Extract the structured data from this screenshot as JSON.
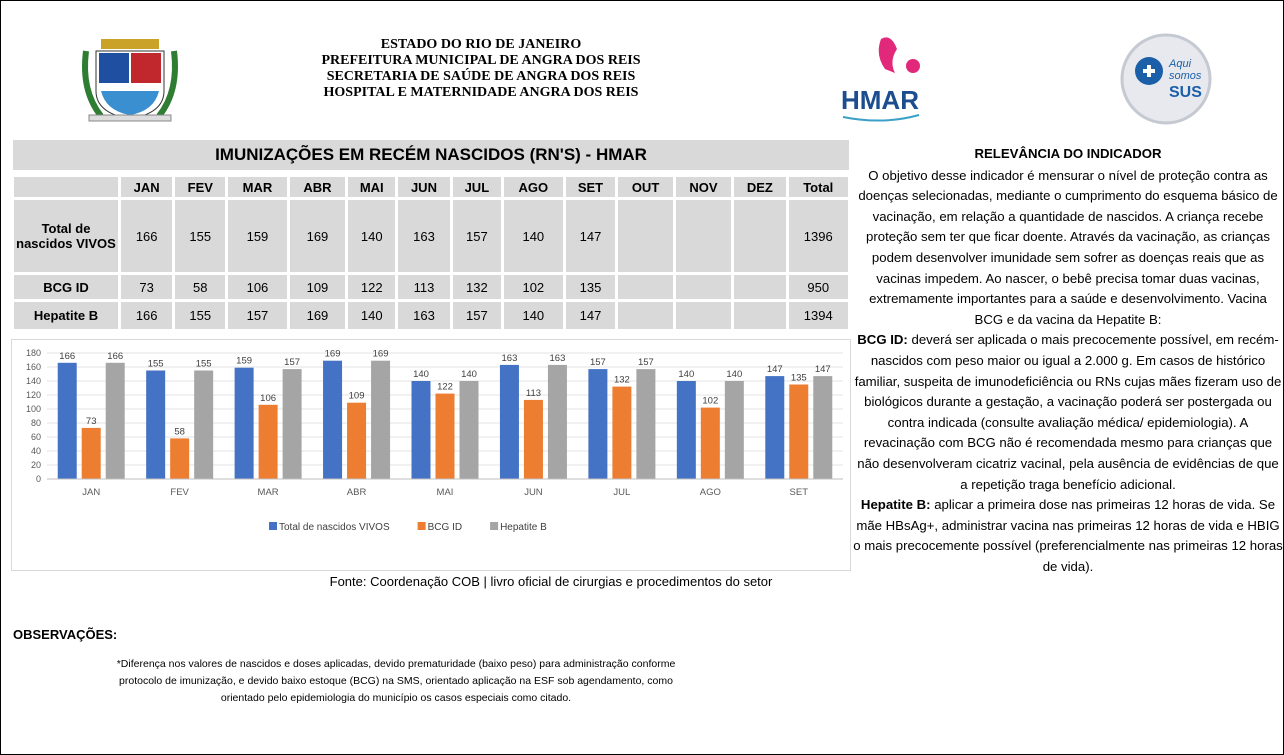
{
  "header": {
    "lines": [
      "ESTADO DO RIO DE JANEIRO",
      "PREFEITURA MUNICIPAL DE ANGRA DOS REIS",
      "SECRETARIA DE SAÚDE DE ANGRA DOS REIS",
      "HOSPITAL E MATERNIDADE ANGRA DOS REIS"
    ],
    "hmar_logo": "HMAR",
    "sus_logo": {
      "line1": "Aqui",
      "line2": "somos",
      "line3": "SUS"
    }
  },
  "title": "IMUNIZAÇÕES EM RECÉM NASCIDOS (RN'S) - HMAR",
  "table": {
    "columns": [
      "JAN",
      "FEV",
      "MAR",
      "ABR",
      "MAI",
      "JUN",
      "JUL",
      "AGO",
      "SET",
      "OUT",
      "NOV",
      "DEZ",
      "Total"
    ],
    "rows": [
      {
        "label": "Total de nascidos VIVOS",
        "values": [
          166,
          155,
          159,
          169,
          140,
          163,
          157,
          140,
          147
        ],
        "total": 1396
      },
      {
        "label": "BCG ID",
        "values": [
          73,
          58,
          106,
          109,
          122,
          113,
          132,
          102,
          135
        ],
        "total": 950
      },
      {
        "label": "Hepatite B",
        "values": [
          166,
          155,
          157,
          169,
          140,
          163,
          157,
          140,
          147
        ],
        "total": 1394
      }
    ]
  },
  "chart_data": {
    "type": "bar",
    "categories": [
      "JAN",
      "FEV",
      "MAR",
      "ABR",
      "MAI",
      "JUN",
      "JUL",
      "AGO",
      "SET"
    ],
    "series": [
      {
        "name": "Total de nascidos VIVOS",
        "color": "#4472c4",
        "values": [
          166,
          155,
          159,
          169,
          140,
          163,
          157,
          140,
          147
        ]
      },
      {
        "name": "BCG ID",
        "color": "#ed7d31",
        "values": [
          73,
          58,
          106,
          109,
          122,
          113,
          132,
          102,
          135
        ]
      },
      {
        "name": "Hepatite B",
        "color": "#a5a5a5",
        "values": [
          166,
          155,
          157,
          169,
          140,
          163,
          157,
          140,
          147
        ]
      }
    ],
    "ylim": [
      0,
      180
    ],
    "yticks": [
      0,
      20,
      40,
      60,
      80,
      100,
      120,
      140,
      160,
      180
    ],
    "grid": true,
    "legend": "bottom"
  },
  "source": "Fonte: Coordenação COB | livro oficial de cirurgias e procedimentos do setor",
  "observations": {
    "title": "OBSERVAÇÕES:",
    "lines": [
      "*Diferença nos valores de nascidos e doses aplicadas, devido prematuridade (baixo peso) para administração conforme",
      "protocolo de imunização, e devido baixo estoque (BCG) na SMS, orientado aplicação na ESF sob agendamento, como",
      "orientado pelo epidemiologia do município os casos especiais como citado."
    ]
  },
  "relevance": {
    "title": "RELEVÂNCIA DO INDICADOR",
    "intro": "O objetivo desse indicador é mensurar o nível de proteção contra as doenças selecionadas, mediante o cumprimento do esquema básico de vacinação, em relação a quantidade de nascidos. A criança recebe proteção sem ter que ficar doente. Através da vacinação, as crianças podem desenvolver imunidade sem sofrer as doenças reais que as vacinas impedem. Ao nascer, o bebê precisa tomar duas vacinas, extremamente importantes para a saúde e desenvolvimento. Vacina BCG e da vacina da Hepatite B:",
    "items": [
      {
        "label": "BCG ID:",
        "text": "deverá ser aplicada o mais precocemente possível, em recém-nascidos com peso maior ou igual a 2.000 g. Em casos de histórico familiar, suspeita de imunodeficiência ou RNs cujas mães fizeram uso de biológicos durante a gestação, a vacinação poderá ser postergada ou contra indicada (consulte avaliação médica/ epidemiologia). A revacinação com BCG não é recomendada mesmo para crianças que não desenvolveram cicatriz vacinal, pela ausência de evidências de que a repetição traga benefício adicional."
      },
      {
        "label": "Hepatite B:",
        "text": "aplicar a primeira dose nas primeiras 12 horas de vida. Se mãe HBsAg+, administrar vacina nas primeiras 12 horas de vida e HBIG o mais precocemente possível (preferencialmente nas primeiras 12 horas de vida)."
      }
    ]
  }
}
